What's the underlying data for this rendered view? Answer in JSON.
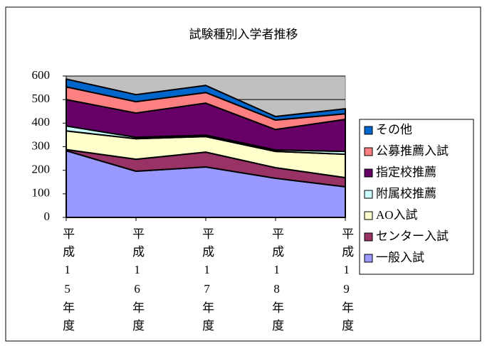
{
  "chart_data": {
    "type": "stacked_area",
    "title": "試験種別入学者推移",
    "categories": [
      "平成15年度",
      "平成16年度",
      "平成17年度",
      "平成18年度",
      "平成19年度"
    ],
    "series": [
      {
        "name": "一般入試",
        "color": "#9999ff",
        "values": [
          283,
          196,
          214,
          166,
          130
        ]
      },
      {
        "name": "センター入試",
        "color": "#993366",
        "values": [
          5,
          51,
          63,
          45,
          39
        ]
      },
      {
        "name": "AO入試",
        "color": "#ffffcc",
        "values": [
          79,
          87,
          66,
          69,
          99
        ]
      },
      {
        "name": "附属校推薦",
        "color": "#ccffff",
        "values": [
          21,
          6,
          6,
          6,
          12
        ]
      },
      {
        "name": "指定校推薦",
        "color": "#660066",
        "values": [
          112,
          103,
          136,
          87,
          136
        ]
      },
      {
        "name": "公募推薦入試",
        "color": "#ff8080",
        "values": [
          54,
          48,
          45,
          40,
          24
        ]
      },
      {
        "name": "その他",
        "color": "#0066cc",
        "values": [
          33,
          30,
          30,
          15,
          21
        ]
      }
    ],
    "ylim": [
      0,
      600
    ],
    "yticks": [
      0,
      100,
      200,
      300,
      400,
      500,
      600
    ],
    "grid": true,
    "legend": "right",
    "plot_background": "#c0c0c0"
  }
}
